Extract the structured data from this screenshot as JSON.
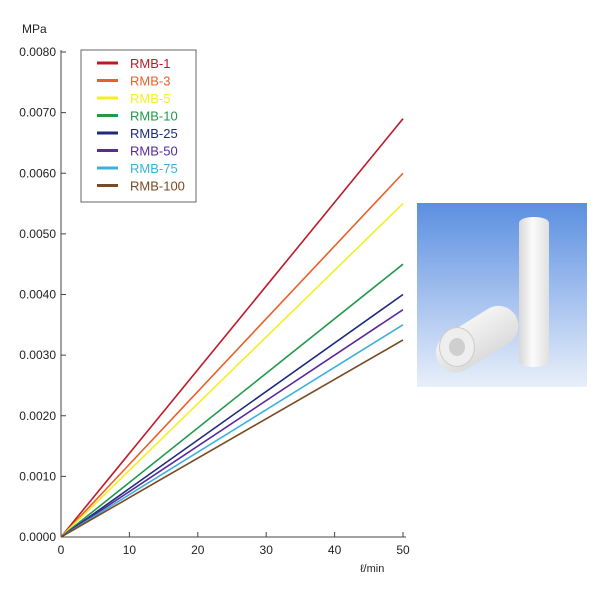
{
  "chart_data": {
    "type": "line",
    "ylabel": "MPa",
    "xlabel": "ℓ/min",
    "xlim": [
      0,
      50
    ],
    "ylim": [
      0,
      0.008
    ],
    "xticks": [
      "0",
      "10",
      "20",
      "30",
      "40",
      "50"
    ],
    "yticks": [
      "0.0000",
      "0.0010",
      "0.0020",
      "0.0030",
      "0.0040",
      "0.0050",
      "0.0060",
      "0.0070",
      "0.0080"
    ],
    "legend_position": "top-left",
    "grid": false,
    "series": [
      {
        "name": "RMB-1",
        "color": "#c0182a",
        "x": [
          0,
          50
        ],
        "y": [
          0,
          0.0069
        ]
      },
      {
        "name": "RMB-3",
        "color": "#e8602c",
        "x": [
          0,
          50
        ],
        "y": [
          0,
          0.006
        ]
      },
      {
        "name": "RMB-5",
        "color": "#f4ee24",
        "x": [
          0,
          50
        ],
        "y": [
          0,
          0.0055
        ]
      },
      {
        "name": "RMB-10",
        "color": "#1f9a4a",
        "x": [
          0,
          50
        ],
        "y": [
          0,
          0.0045
        ]
      },
      {
        "name": "RMB-25",
        "color": "#1e2a80",
        "x": [
          0,
          50
        ],
        "y": [
          0,
          0.004
        ]
      },
      {
        "name": "RMB-50",
        "color": "#5a2a9a",
        "x": [
          0,
          50
        ],
        "y": [
          0,
          0.00375
        ]
      },
      {
        "name": "RMB-75",
        "color": "#3cb0dc",
        "x": [
          0,
          50
        ],
        "y": [
          0,
          0.0035
        ]
      },
      {
        "name": "RMB-100",
        "color": "#7a4a22",
        "x": [
          0,
          50
        ],
        "y": [
          0,
          0.00325
        ]
      }
    ]
  }
}
